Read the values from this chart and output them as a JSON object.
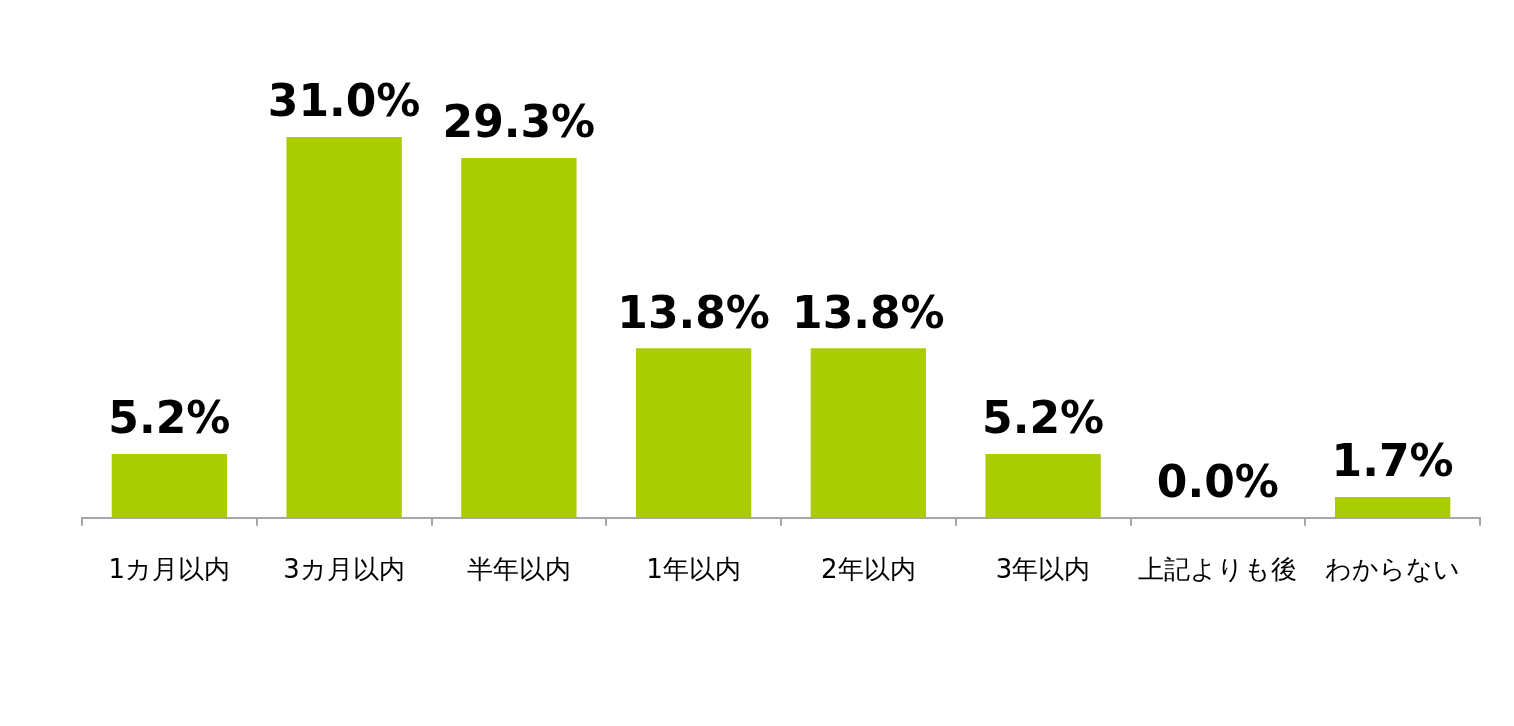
{
  "chart_data": {
    "type": "bar",
    "categories": [
      "1カ月以内",
      "3カ月以内",
      "半年以内",
      "1年以内",
      "2年以内",
      "3年以内",
      "上記よりも後",
      "わからない"
    ],
    "values": [
      5.2,
      31.0,
      29.3,
      13.8,
      13.8,
      5.2,
      0.0,
      1.7
    ],
    "value_labels": [
      "5.2%",
      "31.0%",
      "29.3%",
      "13.8%",
      "13.8%",
      "5.2%",
      "0.0%",
      "1.7%"
    ],
    "color": "#aacc03",
    "grid": false,
    "legend": false,
    "tick_labels": "x"
  }
}
